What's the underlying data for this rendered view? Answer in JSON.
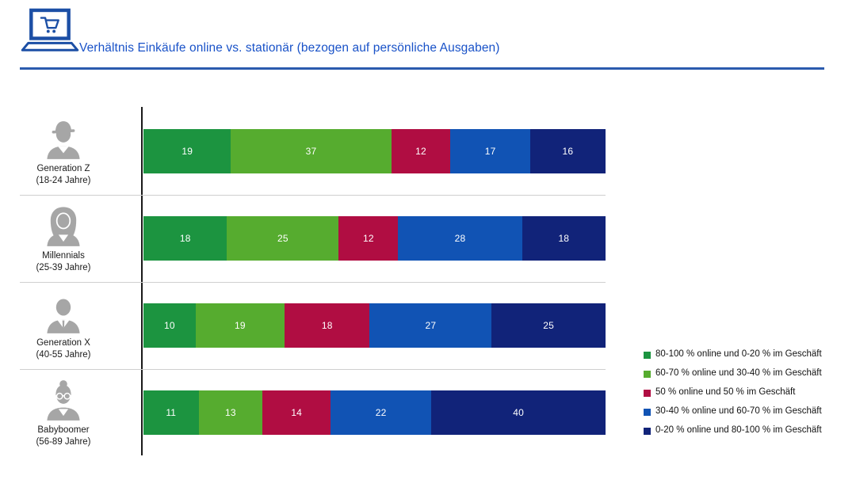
{
  "header": {
    "title": "Verhältnis Einkäufe online vs. stationär (bezogen auf persönliche Ausgaben)",
    "icon": "laptop-shopping-cart-icon",
    "title_color": "#1952C8",
    "rule_color": "#2B5BAE"
  },
  "chart_data": {
    "type": "bar",
    "orientation": "horizontal",
    "stacked": true,
    "normalized_to_full_width": true,
    "title": "Verhältnis Einkäufe online vs. stationär (bezogen auf persönliche Ausgaben)",
    "categories": [
      "Generation Z (18-24 Jahre)",
      "Millennials (25-39 Jahre)",
      "Generation X (40-55 Jahre)",
      "Babyboomer (56-89 Jahre)"
    ],
    "rows": [
      {
        "label": "Generation Z",
        "sublabel": "(18-24 Jahre)",
        "icon": "person-cap-icon"
      },
      {
        "label": "Millennials",
        "sublabel": "(25-39 Jahre)",
        "icon": "person-long-hair-icon"
      },
      {
        "label": "Generation X",
        "sublabel": "(40-55 Jahre)",
        "icon": "person-suit-tie-icon"
      },
      {
        "label": "Babyboomer",
        "sublabel": "(56-89 Jahre)",
        "icon": "person-glasses-bun-icon"
      }
    ],
    "series": [
      {
        "name": "80-100 % online und 0-20 % im Geschäft",
        "color": "#1C9440",
        "values": [
          19,
          18,
          10,
          11
        ]
      },
      {
        "name": "60-70 % online und 30-40 % im Geschäft",
        "color": "#56AC2F",
        "values": [
          37,
          25,
          19,
          13
        ]
      },
      {
        "name": "50 % online und 50 % im Geschäft",
        "color": "#B00D42",
        "values": [
          12,
          12,
          18,
          14
        ]
      },
      {
        "name": "30-40 % online und 60-70 % im Geschäft",
        "color": "#1153B4",
        "values": [
          17,
          28,
          27,
          22
        ]
      },
      {
        "name": "0-20 % online und 80-100 % im Geschäft",
        "color": "#112379",
        "values": [
          16,
          18,
          25,
          40
        ]
      }
    ],
    "legend_position": "right",
    "icon_color": "#A6A6A6",
    "value_labels": "inside-white"
  }
}
